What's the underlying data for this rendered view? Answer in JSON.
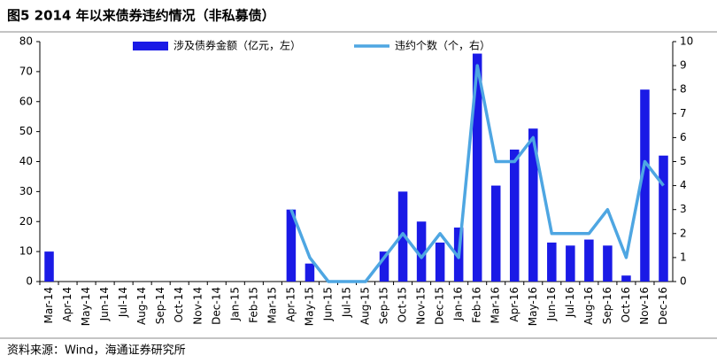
{
  "chart_data": {
    "type": "bar",
    "title": "图5 2014 年以来债券违约情况（非私募债）",
    "source": "资料来源：Wind，海通证券研究所",
    "categories": [
      "Mar-14",
      "Apr-14",
      "May-14",
      "Jun-14",
      "Jul-14",
      "Aug-14",
      "Sep-14",
      "Oct-14",
      "Nov-14",
      "Dec-14",
      "Jan-15",
      "Feb-15",
      "Mar-15",
      "Apr-15",
      "May-15",
      "Jun-15",
      "Jul-15",
      "Aug-15",
      "Sep-15",
      "Oct-15",
      "Nov-15",
      "Dec-15",
      "Jan-16",
      "Feb-16",
      "Mar-16",
      "Apr-16",
      "May-16",
      "Jun-16",
      "Jul-16",
      "Aug-16",
      "Sep-16",
      "Oct-16",
      "Nov-16",
      "Dec-16"
    ],
    "series": [
      {
        "name": "涉及债券金额（亿元，左）",
        "type": "bar",
        "color": "#1a1ae6",
        "values": [
          10,
          0,
          0,
          0,
          0,
          0,
          0,
          0,
          0,
          0,
          0,
          0,
          0,
          24,
          6,
          0,
          0,
          0,
          10,
          30,
          20,
          13,
          18,
          76,
          32,
          44,
          51,
          13,
          12,
          14,
          12,
          2,
          64,
          42
        ]
      },
      {
        "name": "违约个数（个，右）",
        "type": "line",
        "axis": "y2",
        "color": "#4ea6e2",
        "values": [
          null,
          null,
          null,
          null,
          null,
          null,
          null,
          null,
          null,
          null,
          null,
          null,
          null,
          3,
          1,
          0,
          0,
          0,
          1,
          2,
          1,
          2,
          1,
          9,
          5,
          5,
          6,
          2,
          2,
          2,
          3,
          1,
          5,
          4
        ]
      }
    ],
    "ylim": [
      0,
      80
    ],
    "yticks": [
      0,
      10,
      20,
      30,
      40,
      50,
      60,
      70,
      80
    ],
    "y2lim": [
      0,
      10
    ],
    "y2ticks": [
      0,
      1,
      2,
      3,
      4,
      5,
      6,
      7,
      8,
      9,
      10
    ],
    "legend": "top"
  }
}
